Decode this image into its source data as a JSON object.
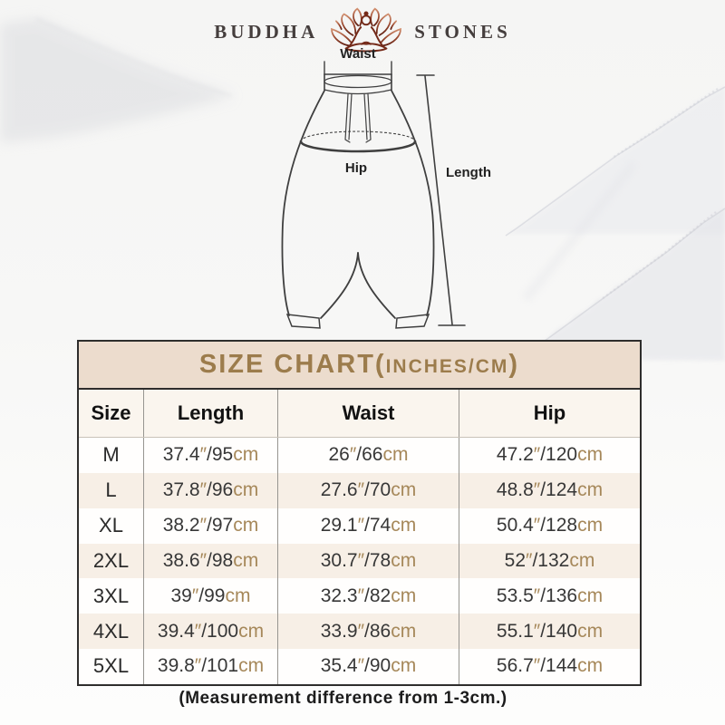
{
  "brand": {
    "name_left": "BUDDHA",
    "name_right": "STONES",
    "icon": "lotus-meditation"
  },
  "diagram": {
    "waist_label": "Waist",
    "hip_label": "Hip",
    "length_label": "Length"
  },
  "size_chart": {
    "title": {
      "main": "SIZE CHART(",
      "sub": "INCHES/CM",
      "close": ")"
    },
    "columns": [
      "Size",
      "Length",
      "Waist",
      "Hip"
    ],
    "unit_inch_mark": "″",
    "unit_cm": "cm",
    "rows": [
      {
        "size": "M",
        "length": {
          "in": "37.4",
          "cm": "95"
        },
        "waist": {
          "in": "26",
          "cm": "66"
        },
        "hip": {
          "in": "47.2",
          "cm": "120"
        }
      },
      {
        "size": "L",
        "length": {
          "in": "37.8",
          "cm": "96"
        },
        "waist": {
          "in": "27.6",
          "cm": "70"
        },
        "hip": {
          "in": "48.8",
          "cm": "124"
        }
      },
      {
        "size": "XL",
        "length": {
          "in": "38.2",
          "cm": "97"
        },
        "waist": {
          "in": "29.1",
          "cm": "74"
        },
        "hip": {
          "in": "50.4",
          "cm": "128"
        }
      },
      {
        "size": "2XL",
        "length": {
          "in": "38.6",
          "cm": "98"
        },
        "waist": {
          "in": "30.7",
          "cm": "78"
        },
        "hip": {
          "in": "52",
          "cm": "132"
        }
      },
      {
        "size": "3XL",
        "length": {
          "in": "39",
          "cm": "99"
        },
        "waist": {
          "in": "32.3",
          "cm": "82"
        },
        "hip": {
          "in": "53.5",
          "cm": "136"
        }
      },
      {
        "size": "4XL",
        "length": {
          "in": "39.4",
          "cm": "100"
        },
        "waist": {
          "in": "33.9",
          "cm": "86"
        },
        "hip": {
          "in": "55.1",
          "cm": "140"
        }
      },
      {
        "size": "5XL",
        "length": {
          "in": "39.8",
          "cm": "101"
        },
        "waist": {
          "in": "35.4",
          "cm": "90"
        },
        "hip": {
          "in": "56.7",
          "cm": "144"
        }
      }
    ]
  },
  "footer_note": "(Measurement difference from 1-3cm.)",
  "colors": {
    "title_bg": "#ecdccd",
    "title_text": "#9c7c4c",
    "accent_tan": "#a6885a",
    "row_alt": "#f7efe6",
    "border_dark": "#2e2d2c",
    "logo_red_dark": "#6e2518",
    "logo_red_light": "#d29070"
  }
}
